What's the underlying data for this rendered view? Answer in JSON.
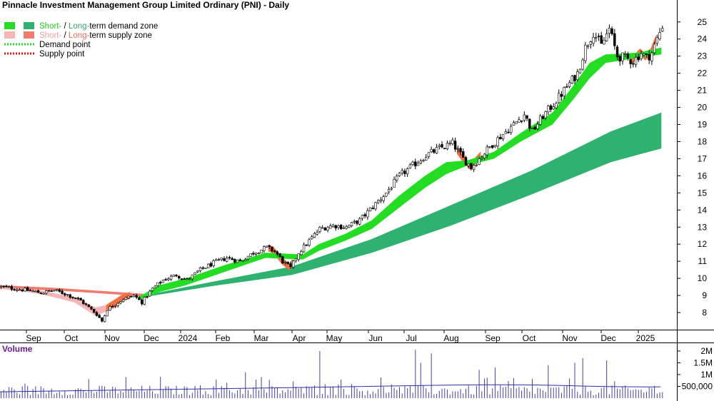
{
  "chart_data": {
    "type": "candlestick",
    "title": "Pinnacle Investment Management Group Limited Ordinary (PNI) - Daily",
    "colors": {
      "short_demand": "#22dd22",
      "long_demand": "#2fb26f",
      "short_supply": "#f7b5b5",
      "long_supply": "#f07c70",
      "demand_point": "#22dd22",
      "supply_point": "#e01010",
      "volume": "#4040b0"
    },
    "legend": {
      "demand_zone": {
        "short": "Short-",
        "sep": " / ",
        "long": "Long-",
        "rest": "term demand zone"
      },
      "supply_zone": {
        "short": "Short-",
        "sep": " / ",
        "long": "Long-",
        "rest": "term supply zone"
      },
      "demand_point": "Demand point",
      "supply_point": "Supply point"
    },
    "x_labels": [
      "Sep",
      "Oct",
      "Nov",
      "Dec",
      "2024",
      "Feb",
      "Mar",
      "Apr",
      "May",
      "Jun",
      "Jul",
      "Aug",
      "Sep",
      "Oct",
      "Nov",
      "Dec",
      "2025"
    ],
    "price_axis": {
      "ylim": [
        7,
        25.7
      ],
      "ticks": [
        8,
        9,
        10,
        11,
        12,
        13,
        14,
        15,
        16,
        17,
        18,
        19,
        20,
        21,
        22,
        23,
        24,
        25
      ],
      "grid": false
    },
    "price_path": [
      [
        0,
        9.5
      ],
      [
        5,
        9.4
      ],
      [
        10,
        9.3
      ],
      [
        15,
        9.15
      ],
      [
        20,
        9.3
      ],
      [
        25,
        9.05
      ],
      [
        30,
        8.7
      ],
      [
        33,
        8.3
      ],
      [
        36,
        7.9
      ],
      [
        38,
        7.5
      ],
      [
        40,
        8.2
      ],
      [
        43,
        8.5
      ],
      [
        46,
        8.8
      ],
      [
        50,
        9.0
      ],
      [
        53,
        8.6
      ],
      [
        57,
        9.4
      ],
      [
        61,
        9.9
      ],
      [
        66,
        10.2
      ],
      [
        70,
        9.9
      ],
      [
        75,
        10.5
      ],
      [
        80,
        10.9
      ],
      [
        85,
        11.2
      ],
      [
        90,
        11.0
      ],
      [
        95,
        11.5
      ],
      [
        100,
        11.8
      ],
      [
        103,
        11.6
      ],
      [
        106,
        11.0
      ],
      [
        109,
        10.6
      ],
      [
        112,
        11.5
      ],
      [
        116,
        12.2
      ],
      [
        120,
        12.9
      ],
      [
        125,
        13.1
      ],
      [
        130,
        13.0
      ],
      [
        135,
        13.4
      ],
      [
        140,
        14.2
      ],
      [
        145,
        15.0
      ],
      [
        150,
        16.0
      ],
      [
        155,
        16.6
      ],
      [
        160,
        17.2
      ],
      [
        165,
        17.6
      ],
      [
        170,
        17.9
      ],
      [
        174,
        17.0
      ],
      [
        177,
        16.5
      ],
      [
        180,
        17.0
      ],
      [
        184,
        17.7
      ],
      [
        188,
        18.3
      ],
      [
        193,
        19.0
      ],
      [
        197,
        19.6
      ],
      [
        200,
        18.6
      ],
      [
        204,
        19.5
      ],
      [
        208,
        20.2
      ],
      [
        213,
        21.2
      ],
      [
        217,
        22.0
      ],
      [
        220,
        23.5
      ],
      [
        223,
        24.4
      ],
      [
        226,
        23.6
      ],
      [
        229,
        24.6
      ],
      [
        232,
        23.0
      ],
      [
        235,
        22.9
      ],
      [
        238,
        22.7
      ],
      [
        241,
        23.2
      ],
      [
        243,
        22.9
      ],
      [
        245,
        23.2
      ],
      [
        247,
        24.0
      ],
      [
        249,
        24.8
      ]
    ],
    "long_demand_zone": [
      [
        [
          54,
          9.0
        ],
        [
          8.9
        ]
      ],
      [
        [
          80,
          9.8
        ],
        [
          9.55
        ]
      ],
      [
        [
          110,
          10.7
        ],
        [
          10.2
        ]
      ],
      [
        [
          140,
          12.3
        ],
        [
          11.5
        ]
      ],
      [
        [
          170,
          14.3
        ],
        [
          13.1
        ]
      ],
      [
        [
          200,
          16.3
        ],
        [
          14.9
        ]
      ],
      [
        [
          230,
          18.6
        ],
        [
          16.8
        ]
      ],
      [
        [
          249,
          19.7
        ],
        [
          17.6
        ]
      ]
    ],
    "long_supply_zone": [
      [
        0,
        9.6,
        9.4
      ],
      [
        20,
        9.45,
        9.3
      ],
      [
        40,
        9.25,
        9.1
      ],
      [
        54,
        9.1,
        8.95
      ]
    ],
    "short_supply_zone": [
      [
        0,
        9.5,
        9.4
      ],
      [
        15,
        9.3,
        9.1
      ],
      [
        28,
        8.9,
        8.6
      ],
      [
        36,
        8.3,
        7.8
      ],
      [
        44,
        8.6,
        8.3
      ]
    ],
    "short_demand_zone": [
      [
        [
          52,
          8.9
        ],
        [
          8.7
        ]
      ],
      [
        [
          60,
          9.6
        ],
        [
          9.2
        ]
      ],
      [
        [
          70,
          10.0
        ],
        [
          9.6
        ]
      ],
      [
        [
          85,
          10.8
        ],
        [
          10.4
        ]
      ],
      [
        [
          100,
          11.5
        ],
        [
          11.2
        ]
      ],
      [
        [
          114,
          11.4
        ],
        [
          11.1
        ]
      ],
      [
        [
          120,
          12.0
        ],
        [
          11.6
        ]
      ],
      [
        [
          130,
          12.6
        ],
        [
          12.2
        ]
      ],
      [
        [
          140,
          13.4
        ],
        [
          12.9
        ]
      ],
      [
        [
          150,
          14.8
        ],
        [
          14.1
        ]
      ],
      [
        [
          160,
          16.0
        ],
        [
          15.3
        ]
      ],
      [
        [
          168,
          16.8
        ],
        [
          16.1
        ]
      ],
      [
        [
          176,
          16.9
        ],
        [
          16.6
        ]
      ],
      [
        [
          186,
          17.4
        ],
        [
          17.0
        ]
      ],
      [
        [
          196,
          18.5
        ],
        [
          18.0
        ]
      ],
      [
        [
          208,
          19.7
        ],
        [
          19.0
        ]
      ],
      [
        [
          216,
          21.3
        ],
        [
          20.5
        ]
      ],
      [
        [
          222,
          22.6
        ],
        [
          21.7
        ]
      ],
      [
        [
          228,
          23.1
        ],
        [
          22.6
        ]
      ],
      [
        [
          240,
          23.2
        ],
        [
          22.9
        ]
      ],
      [
        [
          249,
          23.5
        ],
        [
          23.1
        ]
      ]
    ],
    "short_supply_segments": [
      [
        [
          103,
          11.5
        ],
        [
          11.2
        ]
      ],
      [
        [
          108,
          11.3
        ],
        [
          10.9
        ]
      ]
    ],
    "volume": {
      "label": "Volume",
      "ticks": [
        {
          "value": 2000000,
          "label": "2M"
        },
        {
          "value": 1500000,
          "label": "1.5M"
        },
        {
          "value": 1000000,
          "label": "1M"
        },
        {
          "value": 500000,
          "label": "500,000"
        }
      ],
      "ylim": [
        0,
        2300000
      ],
      "average": 450000,
      "spikes": [
        [
          120,
          2000000
        ],
        [
          156,
          2050000
        ],
        [
          162,
          1900000
        ],
        [
          158,
          1500000
        ],
        [
          206,
          1400000
        ],
        [
          216,
          1500000
        ],
        [
          219,
          1700000
        ],
        [
          228,
          1600000
        ],
        [
          92,
          1100000
        ],
        [
          186,
          1300000
        ],
        [
          180,
          1200000
        ]
      ]
    }
  }
}
